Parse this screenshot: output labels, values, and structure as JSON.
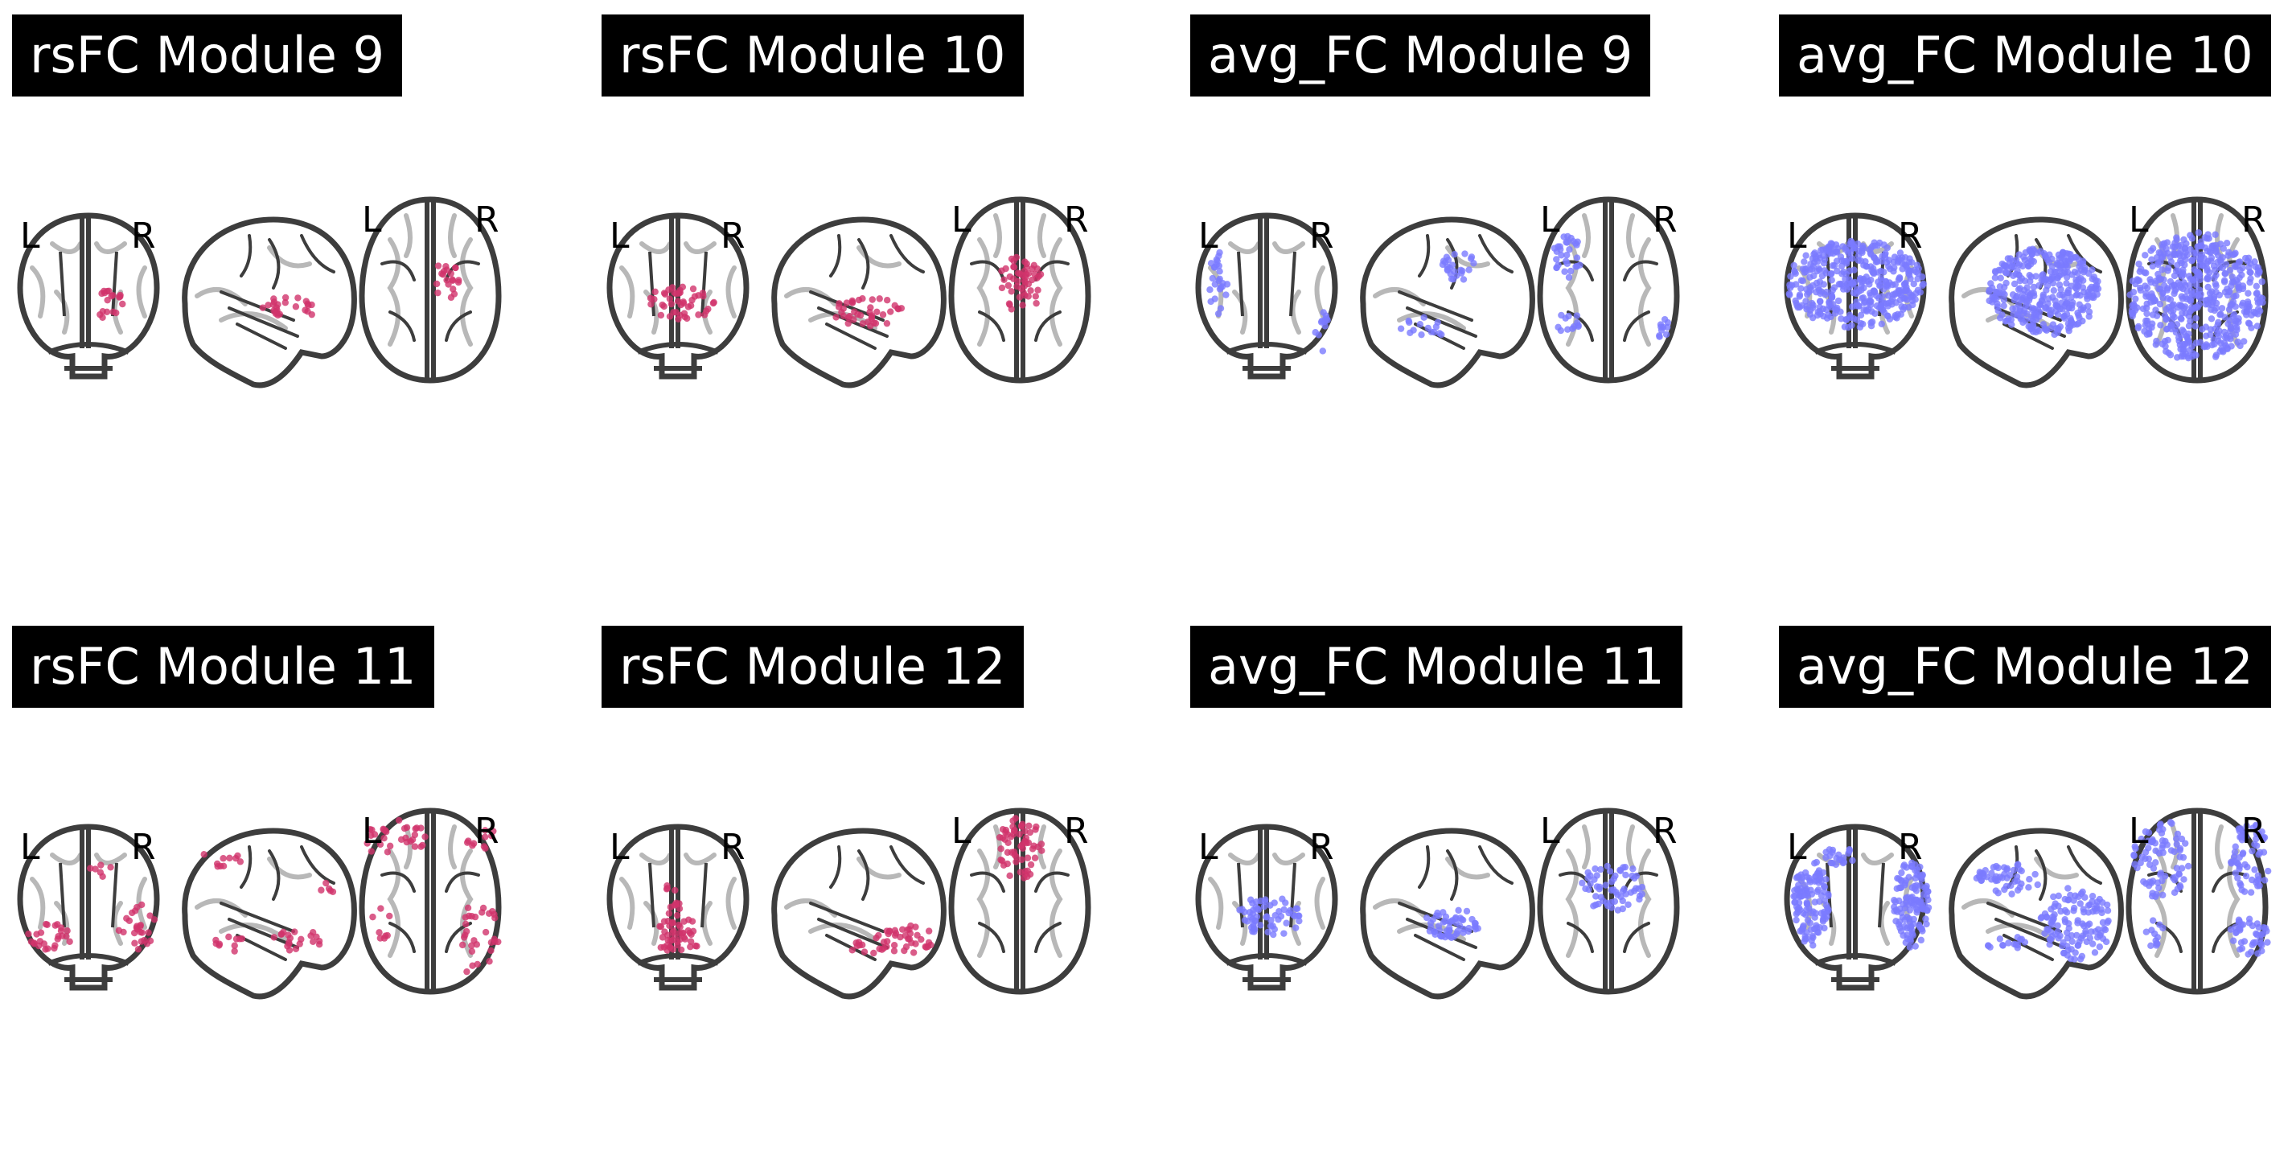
{
  "panels": [
    {
      "title": "rsFC Module 9",
      "color": "#d1336b",
      "orientation_labels": [
        "L",
        "R",
        "L",
        "R"
      ]
    },
    {
      "title": "rsFC Module 10",
      "color": "#d1336b",
      "orientation_labels": [
        "L",
        "R",
        "L",
        "R"
      ]
    },
    {
      "title": "avg_FC Module 9",
      "color": "#7b7bff",
      "orientation_labels": [
        "L",
        "R",
        "L",
        "R"
      ]
    },
    {
      "title": "avg_FC Module 10",
      "color": "#7b7bff",
      "orientation_labels": [
        "L",
        "R",
        "L",
        "R"
      ]
    },
    {
      "title": "rsFC Module 11",
      "color": "#d1336b",
      "orientation_labels": [
        "L",
        "R",
        "L",
        "R"
      ]
    },
    {
      "title": "rsFC Module 12",
      "color": "#d1336b",
      "orientation_labels": [
        "L",
        "R",
        "L",
        "R"
      ]
    },
    {
      "title": "avg_FC Module 11",
      "color": "#7b7bff",
      "orientation_labels": [
        "L",
        "R",
        "L",
        "R"
      ]
    },
    {
      "title": "avg_FC Module 12",
      "color": "#7b7bff",
      "orientation_labels": [
        "L",
        "R",
        "L",
        "R"
      ]
    }
  ]
}
